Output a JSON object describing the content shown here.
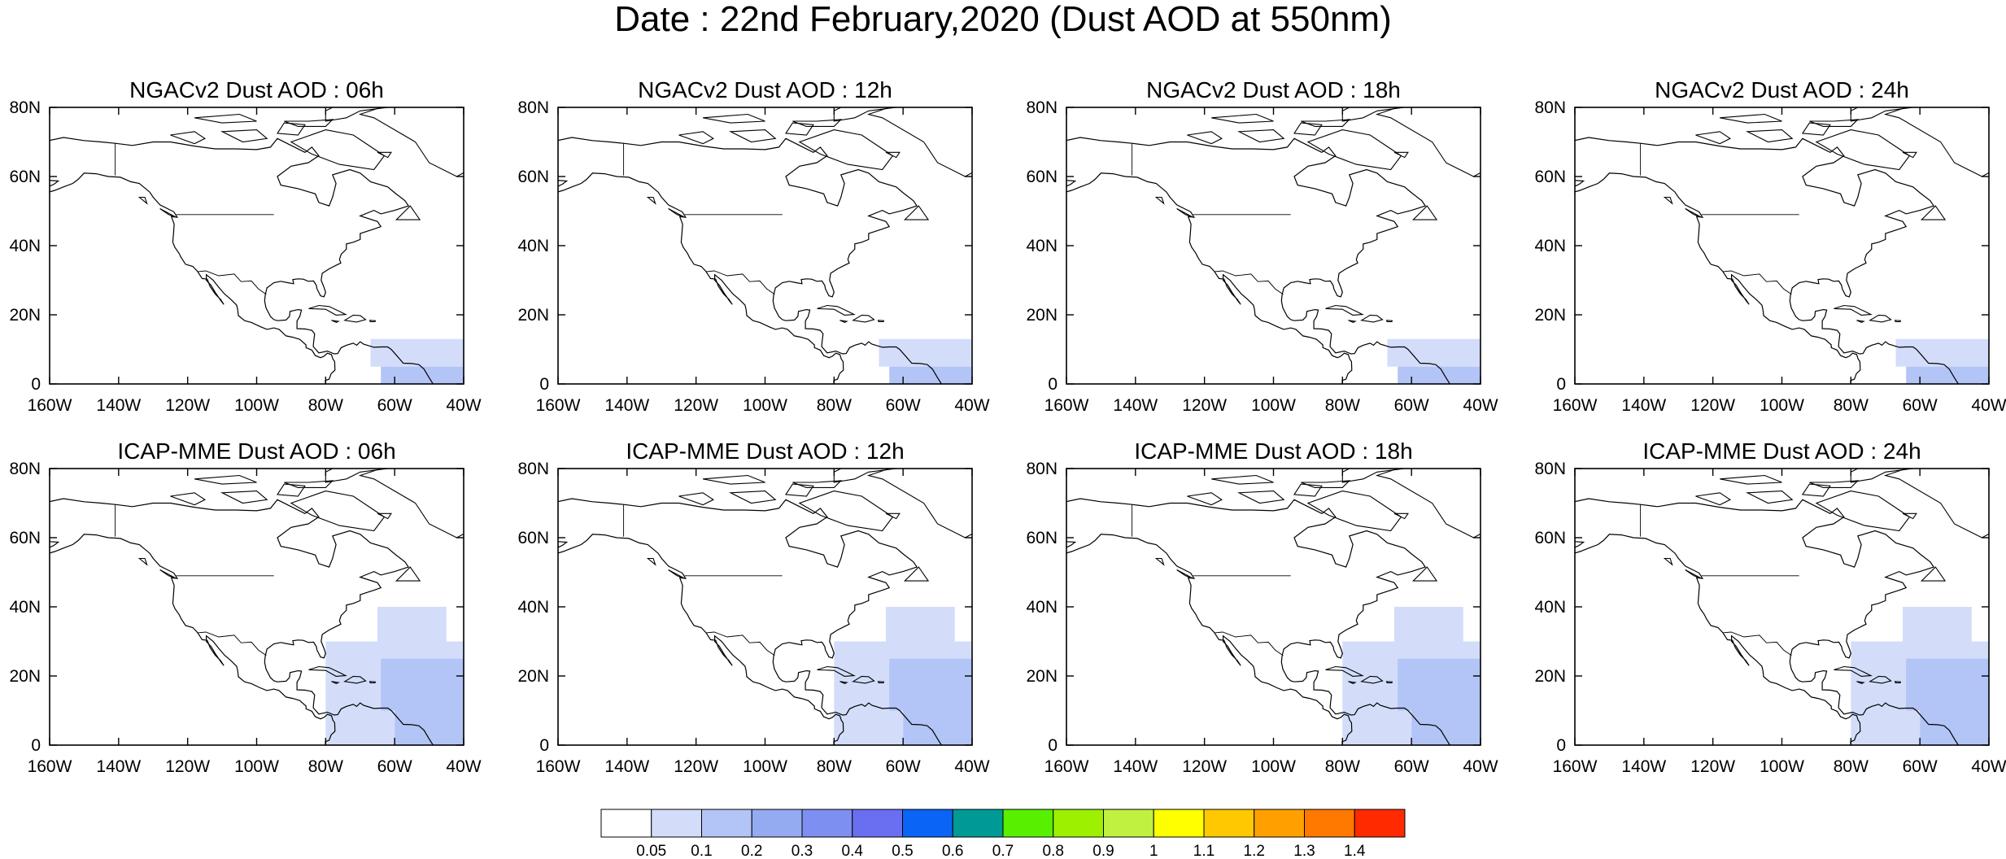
{
  "title": "Date : 22nd February,2020 (Dust AOD at 550nm)",
  "panels": [
    {
      "title": "NGACv2 Dust AOD : 06h",
      "row": 0,
      "col": 0,
      "model": "ngac"
    },
    {
      "title": "NGACv2 Dust AOD : 12h",
      "row": 0,
      "col": 1,
      "model": "ngac"
    },
    {
      "title": "NGACv2 Dust AOD : 18h",
      "row": 0,
      "col": 2,
      "model": "ngac"
    },
    {
      "title": "NGACv2 Dust AOD : 24h",
      "row": 0,
      "col": 3,
      "model": "ngac"
    },
    {
      "title": "ICAP-MME Dust AOD : 06h",
      "row": 1,
      "col": 0,
      "model": "icap"
    },
    {
      "title": "ICAP-MME Dust AOD : 12h",
      "row": 1,
      "col": 1,
      "model": "icap"
    },
    {
      "title": "ICAP-MME Dust AOD : 18h",
      "row": 1,
      "col": 2,
      "model": "icap"
    },
    {
      "title": "ICAP-MME Dust AOD : 24h",
      "row": 1,
      "col": 3,
      "model": "icap"
    }
  ],
  "map": {
    "lon_range": [
      -160,
      -40
    ],
    "lat_range": [
      0,
      80
    ],
    "lon_ticks": [
      -160,
      -140,
      -120,
      -100,
      -80,
      -60,
      -40
    ],
    "lon_tick_labels": [
      "160W",
      "140W",
      "120W",
      "100W",
      "80W",
      "60W",
      "40W"
    ],
    "lat_ticks": [
      0,
      20,
      40,
      60,
      80
    ],
    "lat_tick_labels": [
      "0",
      "20N",
      "40N",
      "60N",
      "80N"
    ]
  },
  "colorbar": {
    "colors": [
      "#ffffff",
      "#d3ddfa",
      "#b3c4f6",
      "#94abf2",
      "#7d8ff0",
      "#6a6ef0",
      "#0a64f5",
      "#009a96",
      "#58f000",
      "#9cf000",
      "#c0f040",
      "#ffff00",
      "#ffc800",
      "#ffa000",
      "#ff7800",
      "#ff2a00"
    ],
    "labels": [
      "0.05",
      "0.1",
      "0.2",
      "0.3",
      "0.4",
      "0.5",
      "0.6",
      "0.7",
      "0.8",
      "0.9",
      "1",
      "1.1",
      "1.2",
      "1.3",
      "1.4"
    ]
  },
  "dust_colors": {
    "light": "#d3ddfa",
    "medium": "#b3c4f6"
  }
}
